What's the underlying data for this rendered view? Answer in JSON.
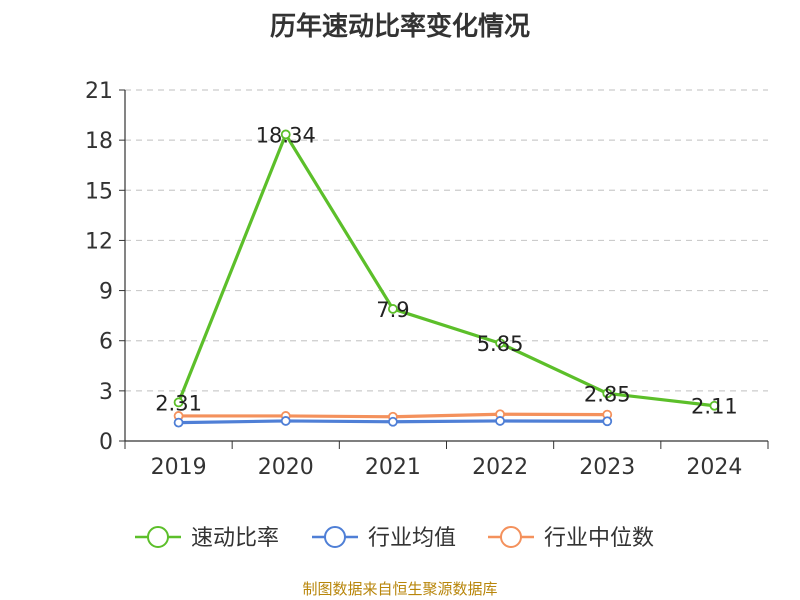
{
  "title": "历年速动比率变化情况",
  "footer": "制图数据来自恒生聚源数据库",
  "chart_data": {
    "type": "line",
    "title": "历年速动比率变化情况",
    "categories": [
      "2019",
      "2020",
      "2021",
      "2022",
      "2023",
      "2024"
    ],
    "ylim": [
      0,
      21
    ],
    "yticks": [
      0,
      3,
      6,
      9,
      12,
      15,
      18,
      21
    ],
    "grid": true,
    "legend_position": "bottom",
    "series": [
      {
        "name": "速动比率",
        "color": "#5cbf2a",
        "values": [
          2.31,
          18.34,
          7.9,
          5.85,
          2.85,
          2.11
        ],
        "show_labels": true
      },
      {
        "name": "行业均值",
        "color": "#4f7fd6",
        "values": [
          1.1,
          1.2,
          1.15,
          1.2,
          1.18,
          null
        ],
        "show_labels": false
      },
      {
        "name": "行业中位数",
        "color": "#f4915c",
        "values": [
          1.5,
          1.5,
          1.45,
          1.6,
          1.58,
          null
        ],
        "show_labels": false
      }
    ]
  }
}
